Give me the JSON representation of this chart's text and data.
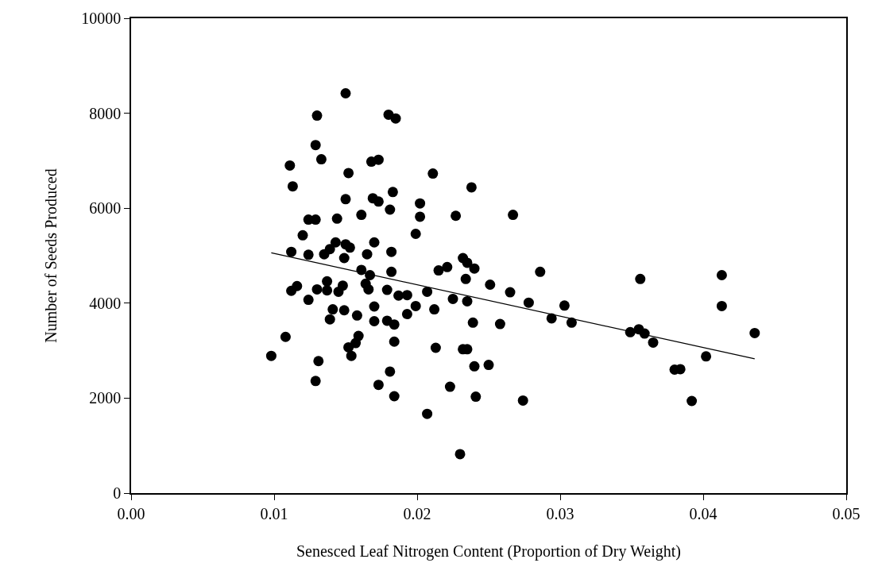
{
  "chart_data": {
    "type": "scatter",
    "xlabel": "Senesced Leaf Nitrogen Content (Proportion of Dry Weight)",
    "ylabel": "Number of Seeds Produced",
    "xlim": [
      0,
      0.05
    ],
    "ylim": [
      0,
      10000
    ],
    "xticks": [
      {
        "value": 0,
        "label": "0.00"
      },
      {
        "value": 0.01,
        "label": "0.01"
      },
      {
        "value": 0.02,
        "label": "0.02"
      },
      {
        "value": 0.03,
        "label": "0.03"
      },
      {
        "value": 0.04,
        "label": "0.04"
      },
      {
        "value": 0.05,
        "label": "0.05"
      }
    ],
    "yticks": [
      0,
      2000,
      4000,
      6000,
      8000,
      10000
    ],
    "legend": false,
    "marker": "circle",
    "series": [
      {
        "color": "#000000",
        "x": [
          0.015,
          0.013,
          0.018,
          0.0185,
          0.0129,
          0.0133,
          0.0111,
          0.0168,
          0.0173,
          0.0152,
          0.0113,
          0.015,
          0.0169,
          0.0173,
          0.0183,
          0.0181,
          0.0124,
          0.0129,
          0.0144,
          0.0161,
          0.012,
          0.0143,
          0.0139,
          0.0135,
          0.015,
          0.0153,
          0.017,
          0.0112,
          0.0124,
          0.0149,
          0.0165,
          0.0182,
          0.0161,
          0.0167,
          0.0182,
          0.0116,
          0.0112,
          0.013,
          0.0137,
          0.0137,
          0.0148,
          0.0145,
          0.0164,
          0.0166,
          0.0179,
          0.0187,
          0.0193,
          0.0124,
          0.0141,
          0.0149,
          0.017,
          0.0158,
          0.0139,
          0.017,
          0.0179,
          0.0184,
          0.0193,
          0.0108,
          0.0098,
          0.0131,
          0.0129,
          0.0159,
          0.0157,
          0.0152,
          0.0154,
          0.0184,
          0.0181,
          0.0173,
          0.0184,
          0.0211,
          0.0238,
          0.0202,
          0.0202,
          0.0227,
          0.0267,
          0.0199,
          0.0232,
          0.0235,
          0.024,
          0.0215,
          0.0221,
          0.0286,
          0.0234,
          0.0251,
          0.0265,
          0.0278,
          0.0294,
          0.0207,
          0.0199,
          0.0212,
          0.0225,
          0.0235,
          0.0239,
          0.0258,
          0.0213,
          0.0232,
          0.0235,
          0.024,
          0.025,
          0.0223,
          0.0241,
          0.0274,
          0.0207,
          0.023,
          0.0303,
          0.0308,
          0.0356,
          0.0349,
          0.0355,
          0.0359,
          0.0365,
          0.038,
          0.0384,
          0.0392,
          0.0402,
          0.0413,
          0.0413,
          0.0436
        ],
        "values": [
          8420,
          7950,
          7970,
          7890,
          7330,
          7030,
          6900,
          6980,
          7020,
          6740,
          6460,
          6190,
          6210,
          6140,
          6340,
          5970,
          5760,
          5760,
          5780,
          5860,
          5430,
          5280,
          5140,
          5030,
          5240,
          5170,
          5280,
          5080,
          5020,
          4950,
          5030,
          5080,
          4700,
          4590,
          4660,
          4360,
          4260,
          4290,
          4460,
          4270,
          4370,
          4240,
          4410,
          4290,
          4280,
          4160,
          4170,
          4070,
          3870,
          3850,
          3930,
          3740,
          3660,
          3620,
          3630,
          3550,
          3770,
          3290,
          2890,
          2780,
          2360,
          3310,
          3160,
          3070,
          2890,
          3190,
          2560,
          2280,
          2040,
          6730,
          6440,
          6100,
          5820,
          5840,
          5860,
          5460,
          4950,
          4850,
          4730,
          4690,
          4760,
          4660,
          4510,
          4390,
          4230,
          4010,
          3680,
          4240,
          3940,
          3870,
          4090,
          4040,
          3590,
          3560,
          3060,
          3030,
          3030,
          2670,
          2700,
          2240,
          2030,
          1950,
          1670,
          820,
          3950,
          3590,
          4510,
          3390,
          3450,
          3360,
          3170,
          2600,
          2610,
          1940,
          2880,
          4590,
          3940,
          3370
        ]
      },
      {
        "type": "line",
        "color": "#000000",
        "marker": "none",
        "x": [
          0.0098,
          0.0436
        ],
        "values": [
          5060,
          2830
        ]
      }
    ]
  }
}
